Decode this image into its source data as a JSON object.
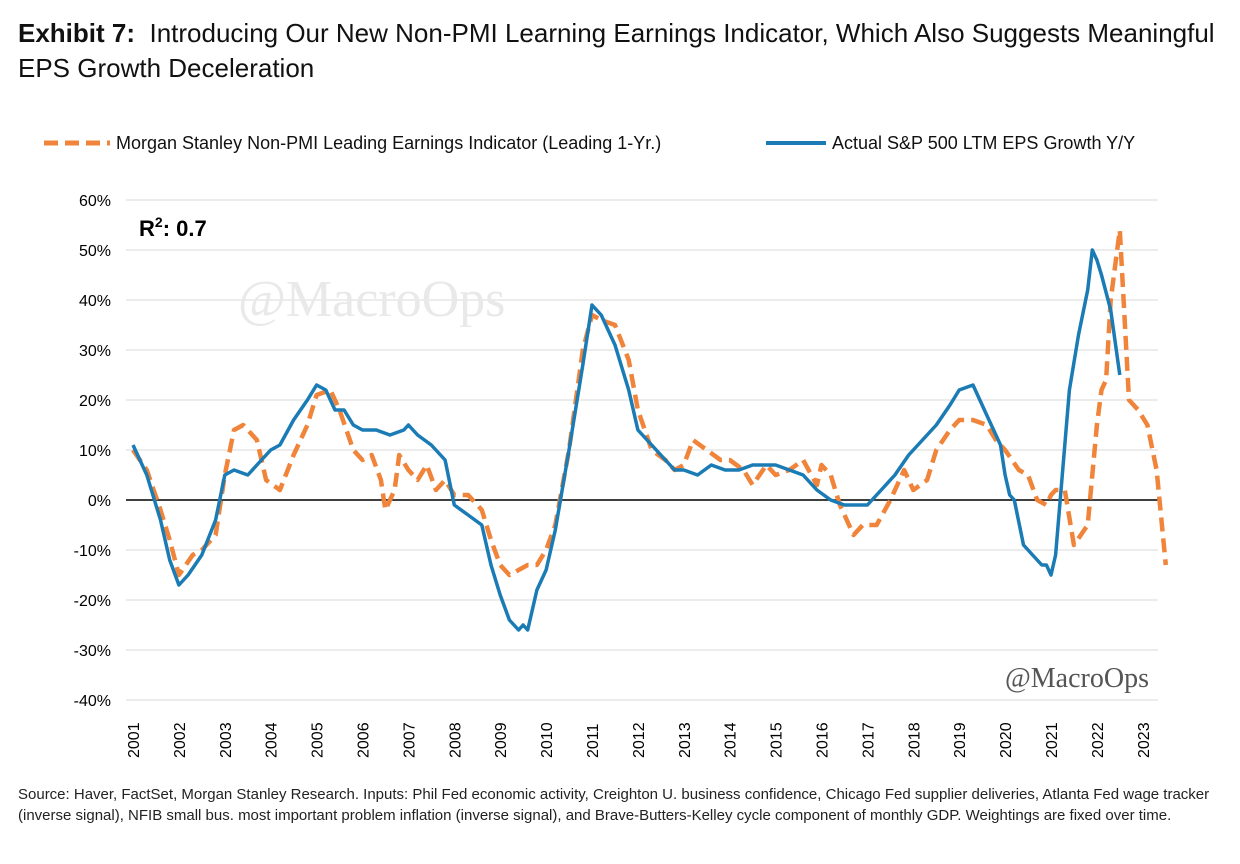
{
  "header": {
    "exhibit_label": "Exhibit 7:",
    "title": "Introducing Our New Non-PMI Learning Earnings Indicator, Which Also Suggests Meaningful EPS Growth Deceleration"
  },
  "legend": {
    "items": [
      {
        "label": "Morgan Stanley Non-PMI Leading Earnings Indicator (Leading 1-Yr.)",
        "color": "#F0843A",
        "style": "dashed"
      },
      {
        "label": "Actual S&P 500 LTM EPS Growth Y/Y",
        "color": "#1A7BB5",
        "style": "solid"
      }
    ]
  },
  "annotation": {
    "r2_prefix": "R",
    "r2_sup": "2",
    "r2_suffix": ": 0.7"
  },
  "watermarks": {
    "center": "@MacroOps",
    "corner": "@MacroOps"
  },
  "source_note": "Source: Haver, FactSet, Morgan Stanley Research. Inputs: Phil Fed economic activity, Creighton U. business confidence, Chicago Fed supplier deliveries, Atlanta Fed wage tracker (inverse signal), NFIB small bus. most important problem inflation (inverse signal), and Brave-Butters-Kelley cycle component of monthly GDP. Weightings are fixed over time.",
  "chart_data": {
    "type": "line",
    "x_tick_labels": [
      "2001",
      "2002",
      "2003",
      "2004",
      "2005",
      "2006",
      "2007",
      "2008",
      "2009",
      "2010",
      "2011",
      "2012",
      "2013",
      "2014",
      "2015",
      "2016",
      "2017",
      "2018",
      "2019",
      "2020",
      "2021",
      "2022",
      "2023"
    ],
    "y_tick_labels": [
      "60%",
      "50%",
      "40%",
      "30%",
      "20%",
      "10%",
      "0%",
      "-10%",
      "-20%",
      "-30%",
      "-40%"
    ],
    "xlim": [
      2001,
      2023.7
    ],
    "ylim": [
      -40,
      60
    ],
    "y_unit": "%",
    "grid": true,
    "legend_position": "top",
    "series": [
      {
        "name": "Morgan Stanley Non-PMI Leading Earnings Indicator (Leading 1-Yr.)",
        "color": "#F0843A",
        "dashed": true,
        "x": [
          2001.0,
          2001.3,
          2001.6,
          2001.8,
          2002.0,
          2002.3,
          2002.5,
          2002.8,
          2003.0,
          2003.2,
          2003.4,
          2003.7,
          2003.9,
          2004.2,
          2004.5,
          2004.8,
          2005.0,
          2005.3,
          2005.5,
          2005.8,
          2006.0,
          2006.2,
          2006.4,
          2006.5,
          2006.7,
          2006.8,
          2007.0,
          2007.2,
          2007.4,
          2007.6,
          2007.8,
          2008.0,
          2008.3,
          2008.6,
          2008.8,
          2009.0,
          2009.2,
          2009.4,
          2009.6,
          2009.8,
          2010.0,
          2010.2,
          2010.5,
          2010.8,
          2011.0,
          2011.2,
          2011.5,
          2011.8,
          2012.0,
          2012.3,
          2012.6,
          2012.8,
          2013.0,
          2013.2,
          2013.5,
          2013.8,
          2014.0,
          2014.3,
          2014.5,
          2014.8,
          2015.0,
          2015.3,
          2015.6,
          2015.9,
          2016.0,
          2016.2,
          2016.4,
          2016.7,
          2016.9,
          2017.2,
          2017.5,
          2017.8,
          2018.0,
          2018.3,
          2018.5,
          2018.8,
          2019.0,
          2019.3,
          2019.6,
          2019.8,
          2020.0,
          2020.3,
          2020.5,
          2020.7,
          2020.9,
          2021.0,
          2021.1,
          2021.3,
          2021.5,
          2021.8,
          2022.0,
          2022.1,
          2022.2,
          2022.3,
          2022.5,
          2022.7,
          2022.9,
          2023.1,
          2023.3,
          2023.5
        ],
        "y": [
          10,
          6,
          -2,
          -8,
          -15,
          -11,
          -10,
          -7,
          5,
          14,
          15,
          12,
          4,
          2,
          9,
          15,
          21,
          22,
          18,
          10,
          8,
          9,
          4,
          -2,
          2,
          9,
          6,
          4,
          7,
          2,
          4,
          1,
          1,
          -2,
          -8,
          -13,
          -15,
          -14,
          -13,
          -13,
          -10,
          -5,
          10,
          30,
          37,
          36,
          35,
          28,
          18,
          10,
          8,
          6,
          7,
          12,
          10,
          8,
          8,
          6,
          3,
          7,
          5,
          6,
          8,
          3,
          7,
          5,
          -1,
          -7,
          -5,
          -5,
          0,
          6,
          2,
          4,
          10,
          14,
          16,
          16,
          15,
          12,
          10,
          6,
          5,
          0,
          -1,
          1,
          2,
          2,
          -9,
          -5,
          15,
          22,
          24,
          40,
          54,
          20,
          18,
          15,
          6,
          -13
        ]
      },
      {
        "name": "Actual S&P 500 LTM EPS Growth Y/Y",
        "color": "#1A7BB5",
        "dashed": false,
        "x": [
          2001.0,
          2001.3,
          2001.6,
          2001.8,
          2002.0,
          2002.2,
          2002.5,
          2002.8,
          2003.0,
          2003.2,
          2003.5,
          2003.8,
          2004.0,
          2004.2,
          2004.5,
          2004.8,
          2005.0,
          2005.2,
          2005.4,
          2005.6,
          2005.8,
          2006.0,
          2006.3,
          2006.6,
          2006.9,
          2007.0,
          2007.2,
          2007.5,
          2007.8,
          2008.0,
          2008.3,
          2008.6,
          2008.8,
          2009.0,
          2009.2,
          2009.4,
          2009.5,
          2009.6,
          2009.8,
          2010.0,
          2010.2,
          2010.5,
          2010.8,
          2011.0,
          2011.2,
          2011.5,
          2011.8,
          2012.0,
          2012.3,
          2012.6,
          2012.8,
          2013.0,
          2013.3,
          2013.6,
          2013.9,
          2014.2,
          2014.5,
          2014.8,
          2015.0,
          2015.3,
          2015.6,
          2015.9,
          2016.2,
          2016.5,
          2016.8,
          2017.0,
          2017.3,
          2017.6,
          2017.9,
          2018.2,
          2018.5,
          2018.8,
          2019.0,
          2019.3,
          2019.6,
          2019.9,
          2020.0,
          2020.1,
          2020.2,
          2020.4,
          2020.6,
          2020.8,
          2020.9,
          2021.0,
          2021.1,
          2021.2,
          2021.4,
          2021.6,
          2021.8,
          2021.9,
          2022.0,
          2022.1,
          2022.3,
          2022.5
        ],
        "y": [
          11,
          5,
          -4,
          -12,
          -17,
          -15,
          -11,
          -4,
          5,
          6,
          5,
          8,
          10,
          11,
          16,
          20,
          23,
          22,
          18,
          18,
          15,
          14,
          14,
          13,
          14,
          15,
          13,
          11,
          8,
          -1,
          -3,
          -5,
          -13,
          -19,
          -24,
          -26,
          -25,
          -26,
          -18,
          -14,
          -6,
          10,
          27,
          39,
          37,
          31,
          22,
          14,
          11,
          8,
          6,
          6,
          5,
          7,
          6,
          6,
          7,
          7,
          7,
          6,
          5,
          2,
          0,
          -1,
          -1,
          -1,
          2,
          5,
          9,
          12,
          15,
          19,
          22,
          23,
          17,
          11,
          5,
          1,
          0,
          -9,
          -11,
          -13,
          -13,
          -15,
          -11,
          0,
          22,
          33,
          42,
          50,
          48,
          45,
          38,
          25
        ]
      }
    ]
  }
}
